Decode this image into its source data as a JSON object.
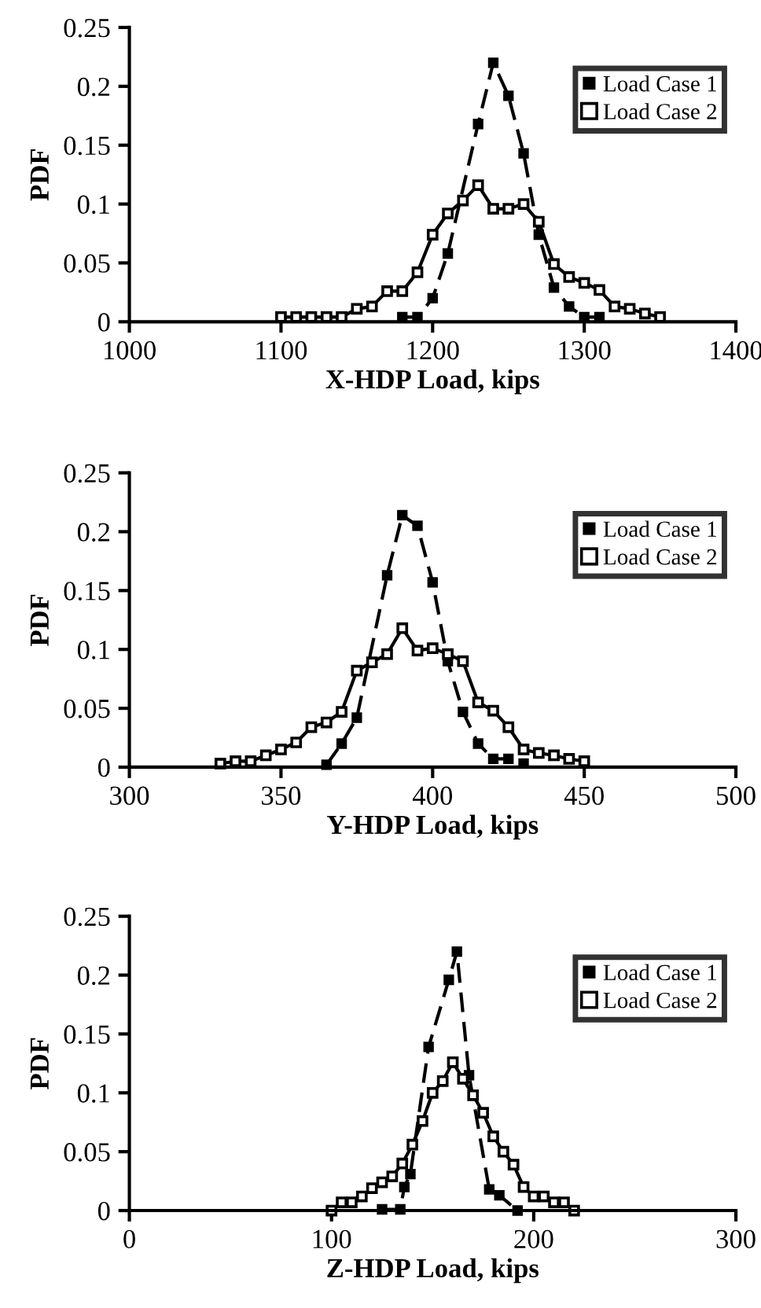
{
  "chart_data": [
    {
      "type": "line",
      "xlabel": "X-HDP Load, kips",
      "ylabel": "PDF",
      "xlim": [
        1000,
        1400
      ],
      "xticks": [
        1000,
        1100,
        1200,
        1300,
        1400
      ],
      "ylim": [
        0,
        0.25
      ],
      "yticks": [
        0,
        0.05,
        0.1,
        0.15,
        0.2,
        0.25
      ],
      "grid": false,
      "legend": "top right",
      "series": [
        {
          "name": "Load Case 1",
          "color": "#000000",
          "marker": "square",
          "line_style": "dashed",
          "x": [
            1180,
            1190,
            1200,
            1210,
            1230,
            1240,
            1250,
            1260,
            1270,
            1280,
            1290,
            1300,
            1310
          ],
          "values": [
            0.004,
            0.004,
            0.02,
            0.058,
            0.168,
            0.22,
            0.192,
            0.143,
            0.074,
            0.029,
            0.013,
            0.004,
            0.004
          ]
        },
        {
          "name": "Load Case 2",
          "color": "#000000",
          "marker": "square",
          "line_style": "solid",
          "x": [
            1100,
            1110,
            1120,
            1130,
            1140,
            1150,
            1160,
            1170,
            1180,
            1190,
            1200,
            1210,
            1220,
            1230,
            1240,
            1250,
            1260,
            1270,
            1280,
            1290,
            1300,
            1310,
            1320,
            1330,
            1340,
            1350
          ],
          "values": [
            0.004,
            0.004,
            0.004,
            0.004,
            0.004,
            0.011,
            0.013,
            0.026,
            0.026,
            0.042,
            0.074,
            0.092,
            0.103,
            0.116,
            0.096,
            0.096,
            0.1,
            0.085,
            0.049,
            0.038,
            0.033,
            0.027,
            0.013,
            0.011,
            0.007,
            0.004
          ]
        }
      ]
    },
    {
      "type": "line",
      "xlabel": "Y-HDP Load, kips",
      "ylabel": "PDF",
      "xlim": [
        300,
        500
      ],
      "xticks": [
        300,
        350,
        400,
        450,
        500
      ],
      "ylim": [
        0,
        0.25
      ],
      "yticks": [
        0,
        0.05,
        0.1,
        0.15,
        0.2,
        0.25
      ],
      "grid": false,
      "legend": "top right",
      "series": [
        {
          "name": "Load Case 1",
          "color": "#000000",
          "marker": "square",
          "line_style": "dashed",
          "x": [
            365,
            370,
            375,
            385,
            390,
            395,
            400,
            405,
            410,
            415,
            420,
            425,
            430
          ],
          "values": [
            0.002,
            0.02,
            0.042,
            0.163,
            0.214,
            0.205,
            0.157,
            0.09,
            0.047,
            0.02,
            0.007,
            0.007,
            0.003
          ]
        },
        {
          "name": "Load Case 2",
          "color": "#000000",
          "marker": "square",
          "line_style": "solid",
          "x": [
            330,
            335,
            340,
            345,
            350,
            355,
            360,
            365,
            370,
            375,
            380,
            385,
            390,
            395,
            400,
            405,
            410,
            415,
            420,
            425,
            430,
            435,
            440,
            445,
            450
          ],
          "values": [
            0.003,
            0.005,
            0.005,
            0.01,
            0.015,
            0.021,
            0.034,
            0.038,
            0.047,
            0.082,
            0.089,
            0.096,
            0.118,
            0.099,
            0.101,
            0.096,
            0.09,
            0.055,
            0.048,
            0.034,
            0.015,
            0.012,
            0.01,
            0.007,
            0.005
          ]
        }
      ]
    },
    {
      "type": "line",
      "xlabel": "Z-HDP Load, kips",
      "ylabel": "PDF",
      "xlim": [
        0,
        300
      ],
      "xticks": [
        0,
        100,
        200,
        300
      ],
      "ylim": [
        0,
        0.25
      ],
      "yticks": [
        0,
        0.05,
        0.1,
        0.15,
        0.2,
        0.25
      ],
      "grid": false,
      "legend": "top right",
      "series": [
        {
          "name": "Load Case 1",
          "color": "#000000",
          "marker": "square",
          "line_style": "dashed",
          "x": [
            125,
            134,
            136,
            139,
            148,
            158,
            162,
            168,
            178,
            183,
            192
          ],
          "values": [
            0.001,
            0.001,
            0.02,
            0.031,
            0.139,
            0.196,
            0.22,
            0.115,
            0.018,
            0.013,
            0.0
          ]
        },
        {
          "name": "Load Case 2",
          "color": "#000000",
          "marker": "square",
          "line_style": "solid",
          "x": [
            100,
            105,
            110,
            115,
            120,
            125,
            130,
            135,
            140,
            145,
            150,
            155,
            160,
            165,
            170,
            175,
            180,
            185,
            190,
            195,
            200,
            205,
            210,
            215,
            220
          ],
          "values": [
            0.0,
            0.007,
            0.007,
            0.012,
            0.019,
            0.024,
            0.029,
            0.04,
            0.056,
            0.076,
            0.1,
            0.11,
            0.126,
            0.112,
            0.098,
            0.083,
            0.063,
            0.05,
            0.039,
            0.02,
            0.012,
            0.012,
            0.007,
            0.007,
            0.0
          ]
        }
      ]
    }
  ]
}
